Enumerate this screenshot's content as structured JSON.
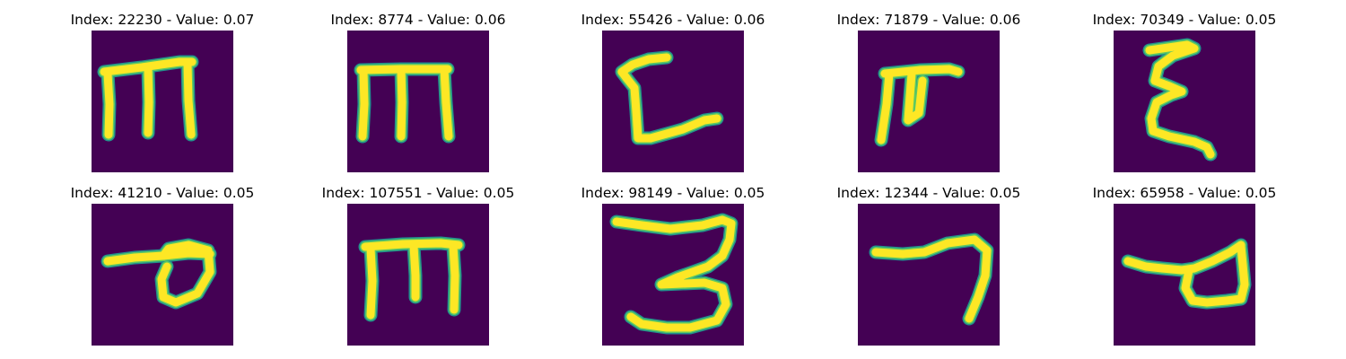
{
  "colors": {
    "background": "#440154",
    "stroke_outer": "#21918c",
    "stroke_mid": "#5ec962",
    "stroke_inner": "#fde725"
  },
  "panels": [
    {
      "title": "Index: 22230 - Value: 0.07",
      "glyph": "m-shape-a"
    },
    {
      "title": "Index: 8774 - Value: 0.06",
      "glyph": "m-shape-b"
    },
    {
      "title": "Index: 55426 - Value: 0.06",
      "glyph": "l-curve"
    },
    {
      "title": "Index: 71879 - Value: 0.06",
      "glyph": "half-m-shape"
    },
    {
      "title": "Index: 70349 - Value: 0.05",
      "glyph": "epsilon-shape"
    },
    {
      "title": "Index: 41210 - Value: 0.05",
      "glyph": "loop-shape-a"
    },
    {
      "title": "Index: 107551 - Value: 0.05",
      "glyph": "m-shape-c"
    },
    {
      "title": "Index: 98149 - Value: 0.05",
      "glyph": "three-shape"
    },
    {
      "title": "Index: 12344 - Value: 0.05",
      "glyph": "seven-shape"
    },
    {
      "title": "Index: 65958 - Value: 0.05",
      "glyph": "loop-shape-b"
    }
  ]
}
